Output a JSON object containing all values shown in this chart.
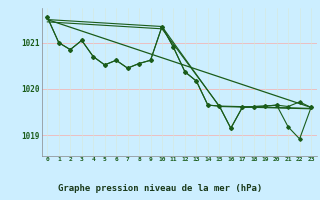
{
  "title": "Graphe pression niveau de la mer (hPa)",
  "background_color": "#cceeff",
  "grid_color_h": "#f0b8b8",
  "grid_color_v": "#d8e8d8",
  "line_color": "#1a5c1a",
  "bottom_bar_color": "#2a6e2a",
  "bottom_bar_bg": "#88aa88",
  "xlim": [
    -0.5,
    23.5
  ],
  "ylim": [
    1018.55,
    1021.75
  ],
  "yticks": [
    1019,
    1020,
    1021
  ],
  "xticks": [
    0,
    1,
    2,
    3,
    4,
    5,
    6,
    7,
    8,
    9,
    10,
    11,
    12,
    13,
    14,
    15,
    16,
    17,
    18,
    19,
    20,
    21,
    22,
    23
  ],
  "series1": {
    "x": [
      0,
      1,
      2,
      3,
      4,
      5,
      6,
      7,
      8,
      9,
      10,
      11,
      12,
      13,
      14,
      15,
      16,
      17,
      18,
      19,
      20,
      21,
      22,
      23
    ],
    "y": [
      1021.55,
      1021.0,
      1020.85,
      1021.05,
      1020.7,
      1020.52,
      1020.62,
      1020.45,
      1020.55,
      1020.62,
      1021.35,
      1020.9,
      1020.37,
      1020.17,
      1019.65,
      1019.63,
      1019.15,
      1019.6,
      1019.62,
      1019.63,
      1019.65,
      1019.62,
      1019.72,
      1019.6
    ]
  },
  "series2": {
    "x": [
      0,
      1,
      2,
      3,
      4,
      5,
      6,
      7,
      8,
      9,
      10,
      11,
      12,
      13,
      14,
      15,
      16,
      17,
      18,
      19,
      20,
      21,
      22,
      23
    ],
    "y": [
      1021.55,
      1021.0,
      1020.85,
      1021.05,
      1020.7,
      1020.52,
      1020.62,
      1020.45,
      1020.55,
      1020.62,
      1021.35,
      1020.9,
      1020.37,
      1020.17,
      1019.65,
      1019.63,
      1019.15,
      1019.6,
      1019.62,
      1019.63,
      1019.65,
      1019.18,
      1018.92,
      1019.6
    ]
  },
  "line_straight": {
    "x": [
      0,
      23
    ],
    "y": [
      1021.5,
      1019.6
    ]
  },
  "line_bent": {
    "x": [
      0,
      10,
      15,
      23
    ],
    "y": [
      1021.45,
      1021.3,
      1019.63,
      1019.58
    ]
  },
  "line_bent2": {
    "x": [
      0,
      10,
      15,
      23
    ],
    "y": [
      1021.5,
      1021.35,
      1019.62,
      1019.57
    ]
  }
}
